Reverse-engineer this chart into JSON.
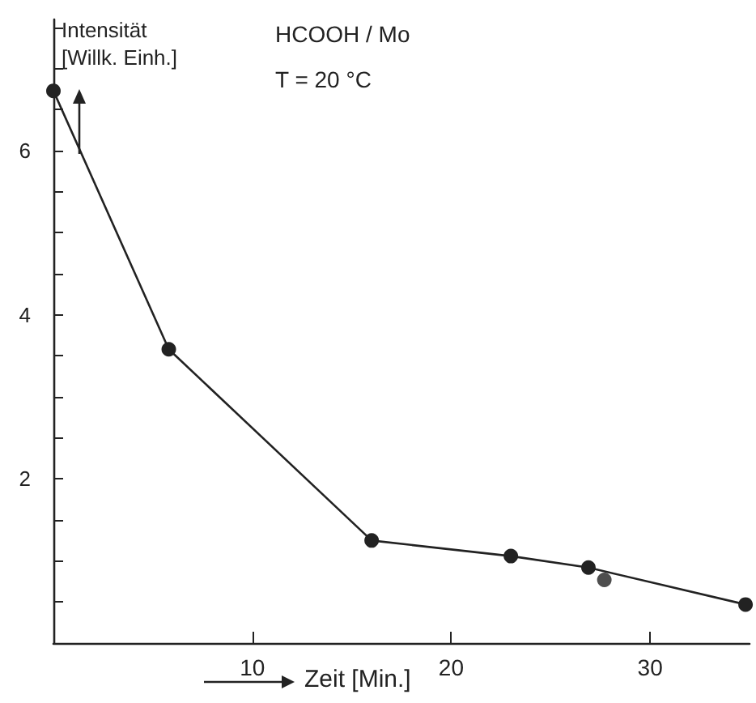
{
  "chart_data": {
    "type": "line",
    "xlabel": "Zeit [Min.]",
    "ylabel": "Intensität [Willk. Einh.]",
    "annotations": [
      "HCOOH / Mo",
      "T = 20 °C"
    ],
    "xlim": [
      0,
      35
    ],
    "xticks": [
      10,
      20,
      30
    ],
    "ylim": [
      0,
      7.6
    ],
    "yticks": [
      {
        "value": 0.5,
        "label": null
      },
      {
        "value": 1,
        "label": null
      },
      {
        "value": 1.5,
        "label": null
      },
      2,
      {
        "value": 2.5,
        "label": null
      },
      {
        "value": 3,
        "label": null
      },
      {
        "value": 3.5,
        "label": null
      },
      4,
      {
        "value": 4.5,
        "label": null
      },
      {
        "value": 5,
        "label": null
      },
      {
        "value": 5.5,
        "label": null
      },
      6,
      {
        "value": 6.5,
        "label": null
      },
      {
        "value": 7,
        "label": null
      },
      {
        "value": 7.5,
        "label": null
      }
    ],
    "marker": "circle",
    "grid": false,
    "series": [
      {
        "color": "#222222",
        "x": [
          0,
          5.8,
          16,
          23,
          26.9,
          34.8
        ],
        "values": [
          6.73,
          3.58,
          1.25,
          1.06,
          0.92,
          0.47
        ]
      },
      {
        "type": "scatter",
        "color": "#222222",
        "x": [
          27.7
        ],
        "values": [
          0.77
        ]
      }
    ]
  }
}
